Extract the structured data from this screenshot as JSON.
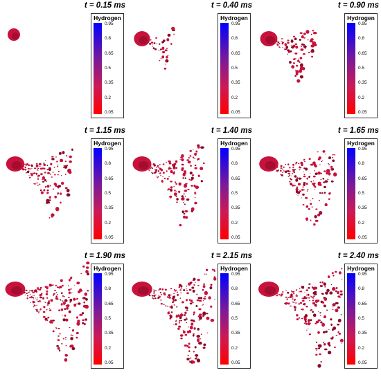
{
  "legend": {
    "title": "Hydrogen",
    "ticks": [
      "0.95",
      "0.8",
      "0.65",
      "0.5",
      "0.35",
      "0.2",
      "0.05"
    ]
  },
  "colors": {
    "droplet": "#c8123c",
    "droplet_dark": "#8a0a28",
    "cmap_top": "#0000ff",
    "cmap_bottom": "#ff0000"
  },
  "panels": [
    {
      "time": "t = 0.15 ms",
      "spread": 0.0
    },
    {
      "time": "t = 0.40 ms",
      "spread": 0.15
    },
    {
      "time": "t = 0.90 ms",
      "spread": 0.35
    },
    {
      "time": "t = 1.15 ms",
      "spread": 0.55
    },
    {
      "time": "t = 1.40 ms",
      "spread": 0.62
    },
    {
      "time": "t = 1.65 ms",
      "spread": 0.7
    },
    {
      "time": "t = 1.90 ms",
      "spread": 0.85
    },
    {
      "time": "t = 2.15 ms",
      "spread": 0.92
    },
    {
      "time": "t = 2.40 ms",
      "spread": 1.0
    }
  ]
}
